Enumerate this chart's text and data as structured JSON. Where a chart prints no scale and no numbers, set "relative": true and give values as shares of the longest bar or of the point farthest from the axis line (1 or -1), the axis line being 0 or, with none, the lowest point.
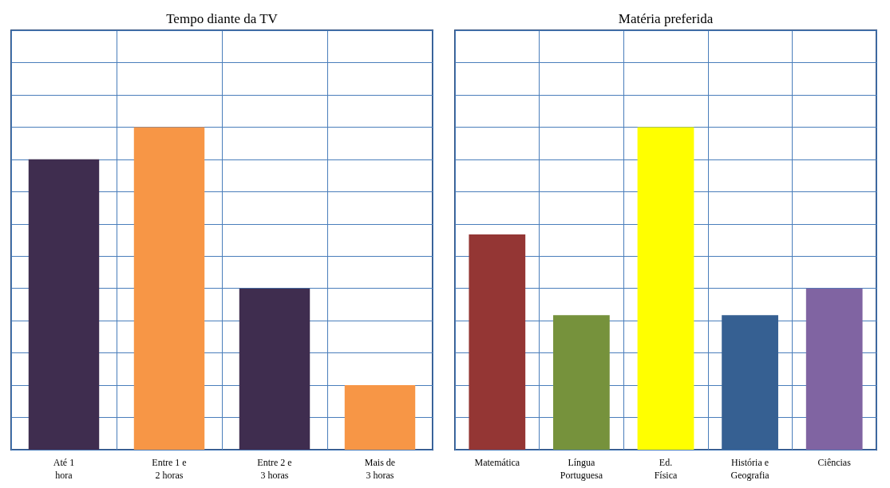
{
  "chart_data": [
    {
      "type": "bar",
      "title": "Tempo diante da TV",
      "categories": [
        "Até 1 hora",
        "Entre 1 e 2 horas",
        "Entre 2 e 3 horas",
        "Mais de 3 horas"
      ],
      "values": [
        0.9,
        1,
        0.5,
        0.2
      ],
      "colors": [
        "#3f2d4f",
        "#f79646",
        "#3f2d4f",
        "#f79646"
      ],
      "relative": true,
      "grid": true
    },
    {
      "type": "bar",
      "title": "Matéria preferida",
      "categories": [
        "Matemática",
        "Língua Portuguesa",
        "Ed. Física",
        "História e Geografia",
        "Ciências"
      ],
      "values": [
        0.667,
        0.417,
        1,
        0.417,
        0.5
      ],
      "colors": [
        "#943634",
        "#76923c",
        "#ffff00",
        "#366092",
        "#8064a2"
      ],
      "relative": true,
      "grid": true
    }
  ]
}
